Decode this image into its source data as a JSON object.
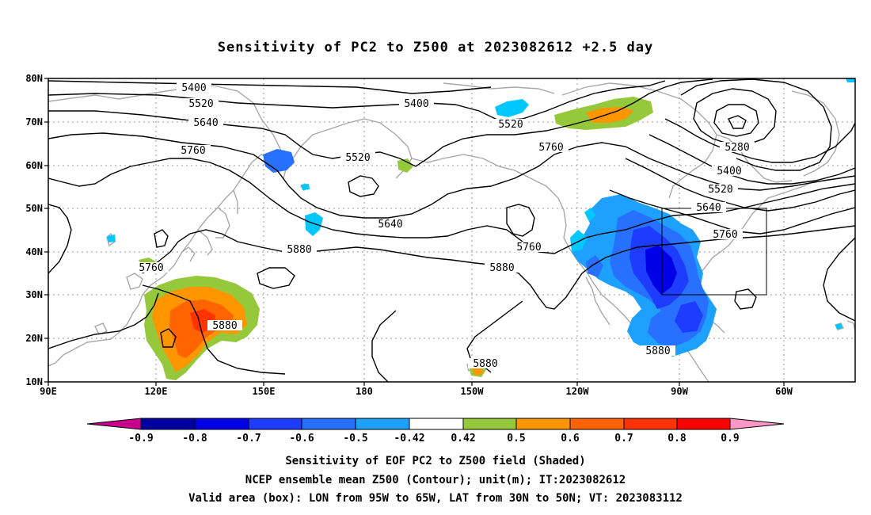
{
  "title": "Sensitivity of PC2 to Z500 at 2023082612 +2.5 day",
  "lat_labels": [
    "80N",
    "70N",
    "60N",
    "50N",
    "40N",
    "30N",
    "20N",
    "10N"
  ],
  "lon_labels": [
    "90E",
    "120E",
    "150E",
    "180",
    "150W",
    "120W",
    "90W",
    "60W"
  ],
  "contour_labels": [
    {
      "text": "5400"
    },
    {
      "text": "5520"
    },
    {
      "text": "5640"
    },
    {
      "text": "5760"
    },
    {
      "text": "5400"
    },
    {
      "text": "5520"
    },
    {
      "text": "5760"
    },
    {
      "text": "5520"
    },
    {
      "text": "5280"
    },
    {
      "text": "5400"
    },
    {
      "text": "5520"
    },
    {
      "text": "5640"
    },
    {
      "text": "5760"
    },
    {
      "text": "5640"
    },
    {
      "text": "5880"
    },
    {
      "text": "5760"
    },
    {
      "text": "5880"
    },
    {
      "text": "5760"
    },
    {
      "text": "5880"
    },
    {
      "text": "5880"
    },
    {
      "text": "5880"
    }
  ],
  "colorbar": {
    "labels": [
      "-0.9",
      "-0.8",
      "-0.7",
      "-0.6",
      "-0.5",
      "-0.42",
      "0.42",
      "0.5",
      "0.6",
      "0.7",
      "0.8",
      "0.9"
    ],
    "colors": [
      "#c8008c",
      "#0000a0",
      "#0000e6",
      "#1e3cff",
      "#2870ff",
      "#1ea0ff",
      "#00c8ff",
      "#ffffff",
      "#96c83c",
      "#ff9600",
      "#ff6400",
      "#ff3200",
      "#ff0000",
      "#ff96c8"
    ]
  },
  "captions": [
    "Sensitivity of EOF PC2 to Z500 field (Shaded)",
    "NCEP ensemble mean Z500 (Contour); unit(m); IT:2023082612",
    "Valid area (box): LON from 95W to 65W, LAT from 30N to 50N; VT: 2023083112"
  ]
}
